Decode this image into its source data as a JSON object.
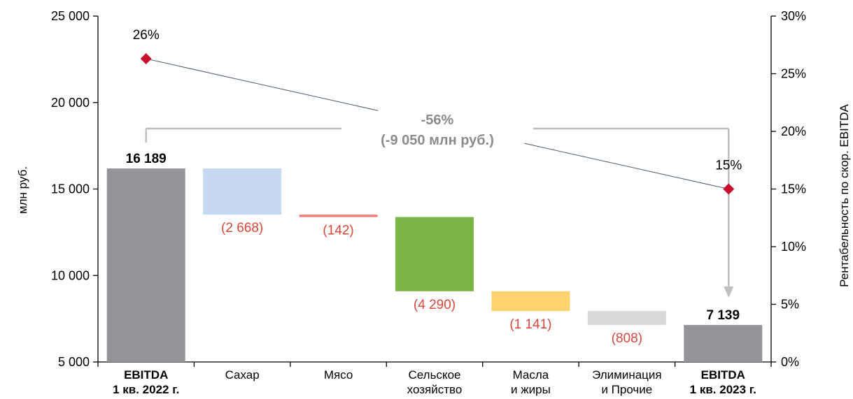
{
  "chart_data": {
    "type": "bar",
    "subtype": "waterfall",
    "title": "",
    "ylabel": "млн руб.",
    "y2label": "Рентабельность по скор. EBITDA",
    "ylim": [
      5000,
      25000
    ],
    "y2lim": [
      0,
      30
    ],
    "yticks": [
      "5 000",
      "10 000",
      "15 000",
      "20 000",
      "25 000"
    ],
    "y2ticks": [
      "0%",
      "5%",
      "10%",
      "15%",
      "20%",
      "25%",
      "30%"
    ],
    "categories": [
      {
        "line1": "EBITDA",
        "line2": "1 кв. 2022 г.",
        "bold": true
      },
      {
        "line1": "Сахар",
        "line2": "",
        "bold": false
      },
      {
        "line1": "Мясо",
        "line2": "",
        "bold": false
      },
      {
        "line1": "Сельское",
        "line2": "хозяйство",
        "bold": false
      },
      {
        "line1": "Масла",
        "line2": "и жиры",
        "bold": false
      },
      {
        "line1": "Элиминация",
        "line2": "и Прочие",
        "bold": false
      },
      {
        "line1": "EBITDA",
        "line2": "1 кв. 2023 г.",
        "bold": true
      }
    ],
    "bars": [
      {
        "kind": "total",
        "start": 5000,
        "end": 16189,
        "label": "16 189",
        "color": "#939598"
      },
      {
        "kind": "delta",
        "start": 16189,
        "end": 13521,
        "label": "(2 668)",
        "color": "#c5d9f1"
      },
      {
        "kind": "delta",
        "start": 13521,
        "end": 13379,
        "label": "(142)",
        "color": "#f08080"
      },
      {
        "kind": "delta",
        "start": 13379,
        "end": 9089,
        "label": "(4 290)",
        "color": "#7ab648"
      },
      {
        "kind": "delta",
        "start": 9089,
        "end": 7948,
        "label": "(1 141)",
        "color": "#ffd36e"
      },
      {
        "kind": "delta",
        "start": 7948,
        "end": 7140,
        "label": "(808)",
        "color": "#d9d9d9"
      },
      {
        "kind": "total",
        "start": 5000,
        "end": 7139,
        "label": "7 139",
        "color": "#939598"
      }
    ],
    "margin_series": {
      "name": "Рентабельность по скор. EBITDA",
      "points": [
        {
          "category_index": 0,
          "value": 26.3,
          "label": "26%"
        },
        {
          "category_index": 6,
          "value": 15.0,
          "label": "15%"
        }
      ],
      "color": "#c8102e"
    },
    "change_annotation": {
      "line1": "-56%",
      "line2": "(-9 050 млн руб.)"
    },
    "colors": {
      "negative_label": "#d9473a",
      "bracket": "#bfbfbf",
      "bracket_text": "#8c8c8c",
      "trend_line": "#4a5a6e"
    }
  }
}
